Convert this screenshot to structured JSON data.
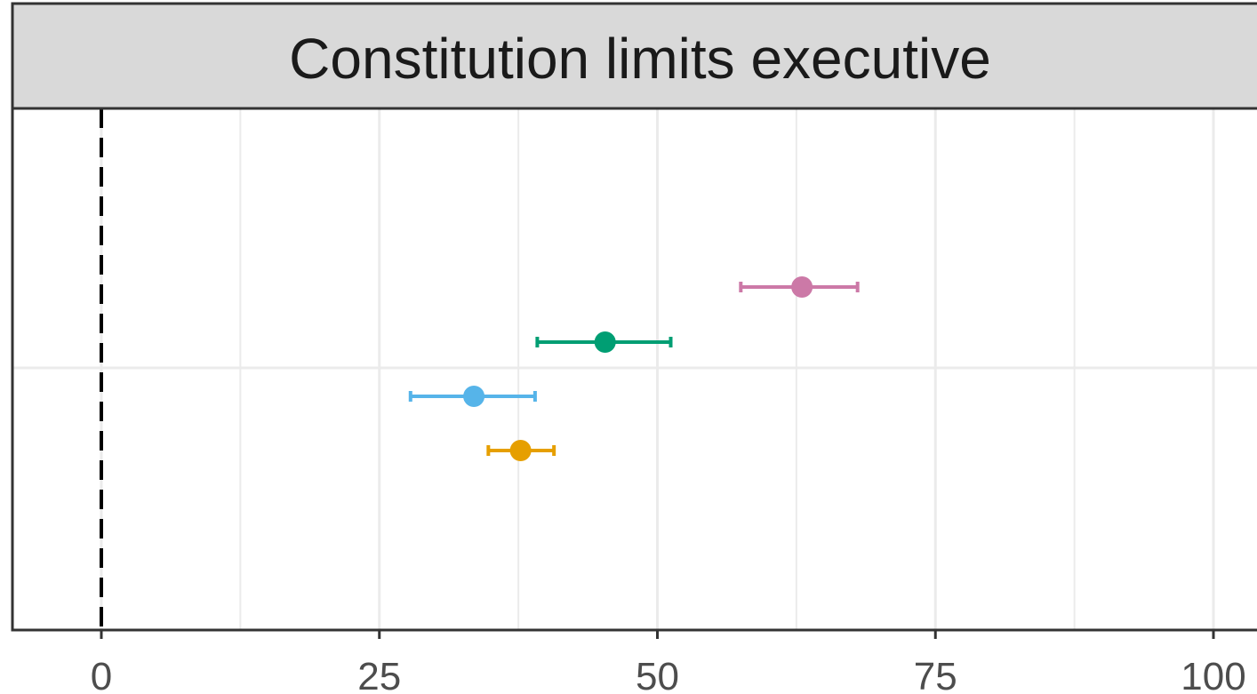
{
  "colors": {
    "strip_bg": "#d9d9d9",
    "panel_border": "#333333",
    "grid": "#ebebeb",
    "reference_line": "#000000",
    "tick_text": "#4d4d4d"
  },
  "chart_data": {
    "type": "scatter",
    "subtype": "point-range (dot with horizontal error bars)",
    "title": "Constitution limits executive",
    "xlabel": "",
    "ylabel": "",
    "xlim": [
      -32.5,
      105
    ],
    "xticks": [
      0,
      25,
      50,
      75,
      100
    ],
    "xtick_labels": [
      "0",
      "25",
      "50",
      "75",
      "100"
    ],
    "grid": true,
    "reference_line": {
      "x": 0,
      "style": "dashed"
    },
    "legend": "none",
    "series": [
      {
        "color": "#CC79A7",
        "estimate": 63.0,
        "lower": 57.5,
        "upper": 68.0
      },
      {
        "color": "#009E73",
        "estimate": 45.3,
        "lower": 39.2,
        "upper": 51.2
      },
      {
        "color": "#56B4E9",
        "estimate": 33.5,
        "lower": 27.8,
        "upper": 39.0
      },
      {
        "color": "#E69F00",
        "estimate": 37.7,
        "lower": 34.8,
        "upper": 40.7
      }
    ]
  }
}
